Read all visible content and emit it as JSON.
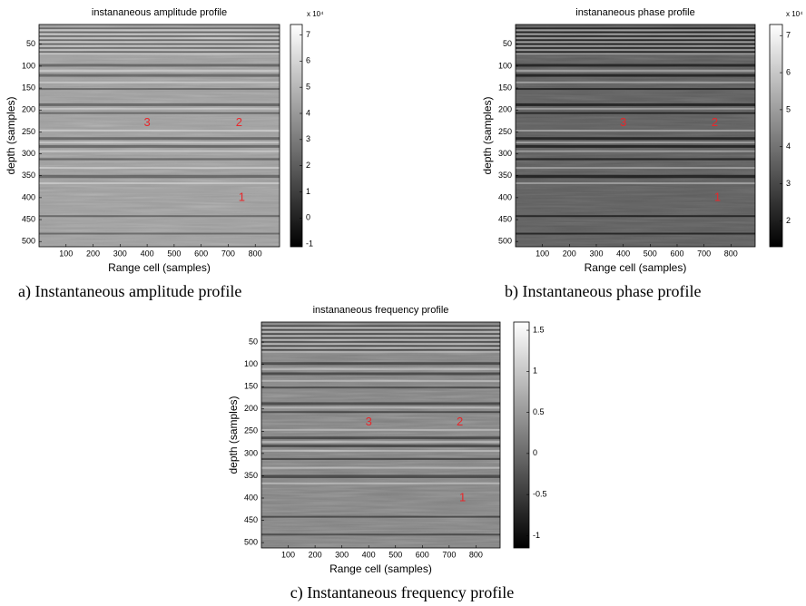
{
  "chart_data": [
    {
      "type": "image",
      "title": "instananeous amplitude profile",
      "xlabel": "Range cell (samples)",
      "ylabel": "depth (samples)",
      "caption": "a) Instantaneous amplitude profile",
      "colormap": "gray",
      "xlim": [
        0,
        890
      ],
      "ylim": [
        5,
        512
      ],
      "y_reversed": true,
      "xticks": [
        100,
        200,
        300,
        400,
        500,
        600,
        700,
        800
      ],
      "yticks": [
        50,
        100,
        150,
        200,
        250,
        300,
        350,
        400,
        450,
        500
      ],
      "colorbar": {
        "lim": [
          -1.1,
          7.4
        ],
        "ticks": [
          -1,
          0,
          1,
          2,
          3,
          4,
          5,
          6,
          7
        ],
        "scale_label": "x 10⁴"
      },
      "annotations": [
        {
          "text": "3",
          "x": 400,
          "y": 230,
          "color": "#e8262a"
        },
        {
          "text": "2",
          "x": 740,
          "y": 230,
          "color": "#e8262a"
        },
        {
          "text": "1",
          "x": 750,
          "y": 400,
          "color": "#e8262a"
        }
      ]
    },
    {
      "type": "image",
      "title": "instananeous phase profile",
      "xlabel": "Range cell (samples)",
      "ylabel": "depth (samples)",
      "caption": "b) Instantaneous phase profile",
      "colormap": "gray",
      "xlim": [
        0,
        890
      ],
      "ylim": [
        5,
        512
      ],
      "y_reversed": true,
      "xticks": [
        100,
        200,
        300,
        400,
        500,
        600,
        700,
        800
      ],
      "yticks": [
        50,
        100,
        150,
        200,
        250,
        300,
        350,
        400,
        450,
        500
      ],
      "colorbar": {
        "lim": [
          1.3,
          7.3
        ],
        "ticks": [
          2,
          3,
          4,
          5,
          6,
          7
        ],
        "scale_label": "x 10⁴"
      },
      "annotations": [
        {
          "text": "3",
          "x": 400,
          "y": 230,
          "color": "#e8262a"
        },
        {
          "text": "2",
          "x": 740,
          "y": 230,
          "color": "#e8262a"
        },
        {
          "text": "1",
          "x": 750,
          "y": 400,
          "color": "#e8262a"
        }
      ]
    },
    {
      "type": "image",
      "title": "instananeous frequency profile",
      "xlabel": "Range cell (samples)",
      "ylabel": "depth (samples)",
      "caption": "c) Instantaneous frequency profile",
      "colormap": "gray",
      "xlim": [
        0,
        890
      ],
      "ylim": [
        5,
        512
      ],
      "y_reversed": true,
      "xticks": [
        100,
        200,
        300,
        400,
        500,
        600,
        700,
        800
      ],
      "yticks": [
        50,
        100,
        150,
        200,
        250,
        300,
        350,
        400,
        450,
        500
      ],
      "colorbar": {
        "lim": [
          -1.15,
          1.6
        ],
        "ticks": [
          -1,
          -0.5,
          0,
          0.5,
          1,
          1.5
        ]
      },
      "annotations": [
        {
          "text": "3",
          "x": 400,
          "y": 230,
          "color": "#e8262a"
        },
        {
          "text": "2",
          "x": 740,
          "y": 230,
          "color": "#e8262a"
        },
        {
          "text": "1",
          "x": 750,
          "y": 400,
          "color": "#e8262a"
        }
      ]
    }
  ]
}
